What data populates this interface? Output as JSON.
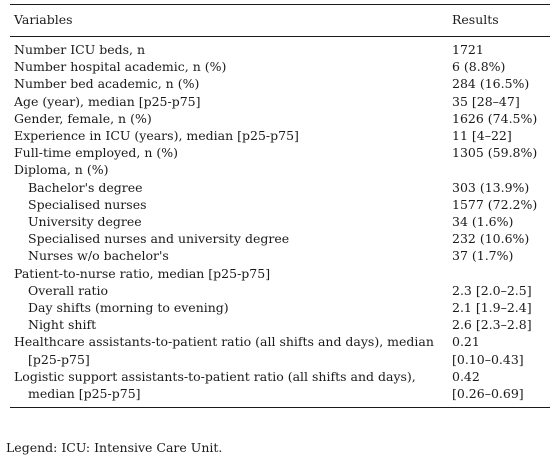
{
  "table": {
    "header": {
      "variables": "Variables",
      "results": "Results"
    },
    "rows": [
      {
        "label": "Number ICU beds, n",
        "value": "1721",
        "indent": false
      },
      {
        "label": "Number hospital academic, n (%)",
        "value": "6 (8.8%)",
        "indent": false
      },
      {
        "label": "Number bed academic, n (%)",
        "value": "284 (16.5%)",
        "indent": false
      },
      {
        "label": "Age (year), median [p25-p75]",
        "value": "35 [28–47]",
        "indent": false
      },
      {
        "label": "Gender, female, n (%)",
        "value": "1626 (74.5%)",
        "indent": false
      },
      {
        "label": "Experience in ICU (years), median [p25-p75]",
        "value": "11 [4–22]",
        "indent": false
      },
      {
        "label": "Full-time employed, n (%)",
        "value": "1305 (59.8%)",
        "indent": false
      },
      {
        "label": "Diploma, n (%)",
        "value": "",
        "indent": false
      },
      {
        "label": "Bachelor's degree",
        "value": "303 (13.9%)",
        "indent": true
      },
      {
        "label": "Specialised nurses",
        "value": "1577 (72.2%)",
        "indent": true
      },
      {
        "label": "University degree",
        "value": "34 (1.6%)",
        "indent": true
      },
      {
        "label": "Specialised nurses and university degree",
        "value": "232 (10.6%)",
        "indent": true
      },
      {
        "label": "Nurses w/o bachelor's",
        "value": "37 (1.7%)",
        "indent": true
      },
      {
        "label": "Patient-to-nurse ratio, median [p25-p75]",
        "value": "",
        "indent": false
      },
      {
        "label": "Overall ratio",
        "value": "2.3 [2.0–2.5]",
        "indent": true
      },
      {
        "label": "Day shifts (morning to evening)",
        "value": "2.1 [1.9–2.4]",
        "indent": true
      },
      {
        "label": "Night shift",
        "value": "2.6 [2.3–2.8]",
        "indent": true
      },
      {
        "label": "Healthcare assistants-to-patient ratio (all shifts and days), median",
        "value": "0.21",
        "indent": false
      },
      {
        "label": "[p25-p75]",
        "value": "[0.10–0.43]",
        "indent": true
      },
      {
        "label": "Logistic support assistants-to-patient ratio (all shifts and days),",
        "value": "0.42",
        "indent": false
      },
      {
        "label": "median [p25-p75]",
        "value": "[0.26–0.69]",
        "indent": true
      }
    ]
  },
  "legend": "Legend: ICU: Intensive Care Unit."
}
